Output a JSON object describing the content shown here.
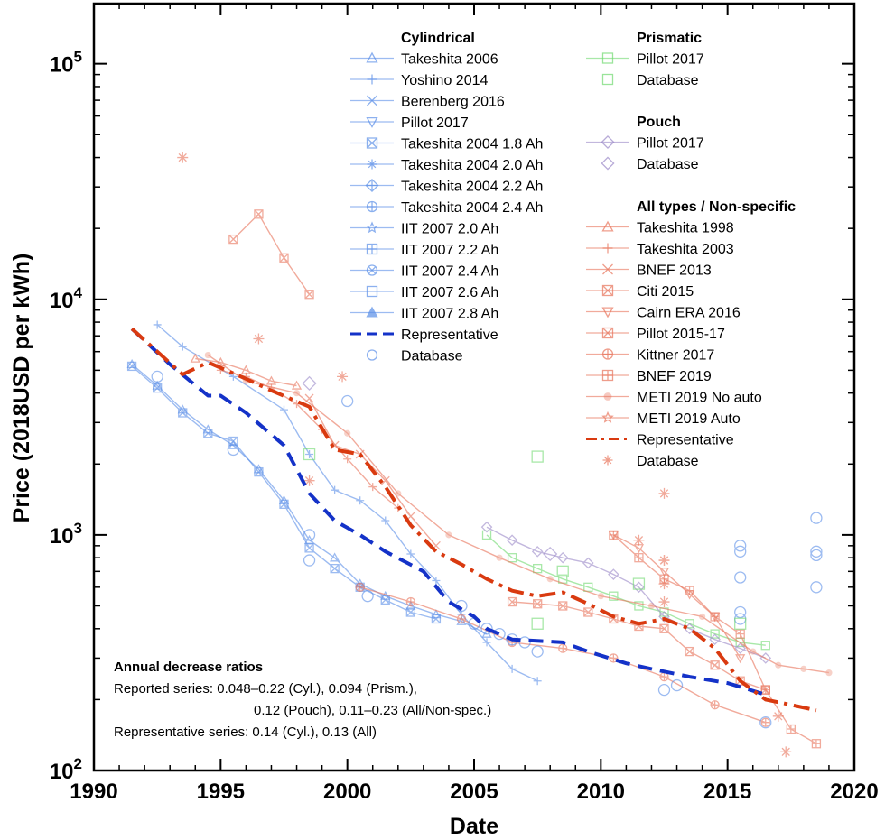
{
  "chart_data": {
    "type": "line",
    "xlabel": "Date",
    "ylabel": "Price (2018USD per kWh)",
    "xlim": [
      1990,
      2020
    ],
    "ylim": [
      100,
      180000
    ],
    "yscale": "log",
    "x_ticks": [
      "1990",
      "1995",
      "2000",
      "2005",
      "2010",
      "2015",
      "2020"
    ],
    "y_ticks": [
      {
        "value": 100,
        "base": "10",
        "exp": "2"
      },
      {
        "value": 1000,
        "base": "10",
        "exp": "3"
      },
      {
        "value": 10000,
        "base": "10",
        "exp": "4"
      },
      {
        "value": 100000,
        "base": "10",
        "exp": "5"
      }
    ],
    "grid": false,
    "legend_position": "top-right",
    "colors": {
      "cylindrical": "#5b8fe8",
      "cyl_light": "#8fb4f0",
      "prismatic": "#6fd96f",
      "pouch": "#9a88c8",
      "all": "#e8735a",
      "all_light": "#f0a090",
      "rep_cyl": "#1432c8",
      "rep_all": "#d93a10"
    },
    "legend": {
      "cylindrical": {
        "heading": "Cylindrical",
        "items": [
          {
            "label": "Takeshita 2006",
            "marker": "triangle"
          },
          {
            "label": "Yoshino 2014",
            "marker": "plus"
          },
          {
            "label": "Berenberg 2016",
            "marker": "cross"
          },
          {
            "label": "Pillot 2017",
            "marker": "triangle-down"
          },
          {
            "label": "Takeshita 2004 1.8 Ah",
            "marker": "square-x"
          },
          {
            "label": "Takeshita 2004 2.0 Ah",
            "marker": "asterisk"
          },
          {
            "label": "Takeshita 2004 2.2 Ah",
            "marker": "diamond-plus"
          },
          {
            "label": "Takeshita 2004 2.4 Ah",
            "marker": "circle-plus"
          },
          {
            "label": "IIT 2007 2.0 Ah",
            "marker": "star"
          },
          {
            "label": "IIT 2007 2.2 Ah",
            "marker": "square-plus"
          },
          {
            "label": "IIT 2007 2.4 Ah",
            "marker": "circle-x"
          },
          {
            "label": "IIT 2007 2.6 Ah",
            "marker": "square"
          },
          {
            "label": "IIT 2007 2.8 Ah",
            "marker": "triangle-filled"
          },
          {
            "label": "Representative",
            "marker": "dash"
          },
          {
            "label": "Database",
            "marker": "circle"
          }
        ]
      },
      "prismatic": {
        "heading": "Prismatic",
        "items": [
          {
            "label": "Pillot 2017",
            "marker": "square"
          },
          {
            "label": "Database",
            "marker": "square"
          }
        ]
      },
      "pouch": {
        "heading": "Pouch",
        "items": [
          {
            "label": "Pillot 2017",
            "marker": "diamond"
          },
          {
            "label": "Database",
            "marker": "diamond"
          }
        ]
      },
      "all": {
        "heading": "All types / Non-specific",
        "items": [
          {
            "label": "Takeshita 1998",
            "marker": "triangle"
          },
          {
            "label": "Takeshita 2003",
            "marker": "plus"
          },
          {
            "label": "BNEF 2013",
            "marker": "cross"
          },
          {
            "label": "Citi 2015",
            "marker": "square-x"
          },
          {
            "label": "Cairn ERA 2016",
            "marker": "triangle-down"
          },
          {
            "label": "Pillot 2015-17",
            "marker": "square-x"
          },
          {
            "label": "Kittner 2017",
            "marker": "circle-plus"
          },
          {
            "label": "BNEF 2019",
            "marker": "square-plus"
          },
          {
            "label": "METI 2019 No auto",
            "marker": "dot"
          },
          {
            "label": "METI 2019 Auto",
            "marker": "star"
          },
          {
            "label": "Representative",
            "marker": "dashdot"
          },
          {
            "label": "Database",
            "marker": "asterisk"
          }
        ]
      }
    },
    "annotation": {
      "heading": "Annual decrease ratios",
      "line1": "Reported series: 0.048–0.22 (Cyl.), 0.094 (Prism.),",
      "line2": "0.12 (Pouch), 0.11–0.23 (All/Non-spec.)",
      "line3": "Representative series: 0.14 (Cyl.), 0.13 (All)"
    },
    "series": [
      {
        "name": "Representative",
        "group": "Cylindrical",
        "style": "dashed",
        "x": [
          1991.5,
          1993.0,
          1994.5,
          1995.0,
          1996.0,
          1997.5,
          1998.5,
          1999.5,
          2000.5,
          2001.5,
          2003.0,
          2004.0,
          2005.0,
          2005.5,
          2006.5,
          2008.5,
          2009.5,
          2011.0,
          2012.0,
          2013.5,
          2015.0,
          2016.5
        ],
        "y": [
          7500,
          5300,
          3900,
          3900,
          3300,
          2400,
          1500,
          1150,
          1000,
          850,
          700,
          520,
          450,
          400,
          360,
          350,
          320,
          285,
          270,
          250,
          235,
          210
        ]
      },
      {
        "name": "Representative",
        "group": "All types / Non-specific",
        "style": "dashdot",
        "x": [
          1991.5,
          1993.5,
          1994.5,
          1996.0,
          1997.0,
          1998.5,
          1999.5,
          2000.5,
          2001.5,
          2002.5,
          2003.5,
          2004.5,
          2005.5,
          2006.5,
          2007.5,
          2008.5,
          2009.5,
          2010.5,
          2011.5,
          2012.5,
          2013.5,
          2014.5,
          2015.5,
          2016.5,
          2017.5,
          2018.5
        ],
        "y": [
          7500,
          4800,
          5400,
          4600,
          4100,
          3500,
          2300,
          2200,
          1600,
          1100,
          850,
          750,
          650,
          580,
          550,
          570,
          510,
          450,
          420,
          440,
          400,
          330,
          240,
          200,
          190,
          180
        ]
      },
      {
        "name": "Takeshita 2006",
        "group": "Cylindrical",
        "x": [
          1991.5,
          1992.5,
          1993.5,
          1994.5,
          1995.5,
          1996.5,
          1997.5,
          1998.5,
          1999.5,
          2000.5,
          2001.5,
          2002.5,
          2003.5,
          2004.5,
          2005.5
        ],
        "y": [
          5300,
          4300,
          3400,
          2800,
          2400,
          1900,
          1400,
          950,
          800,
          620,
          550,
          500,
          460,
          430,
          380
        ]
      },
      {
        "name": "Yoshino 2014",
        "group": "Cylindrical",
        "x": [
          1992.5,
          1993.5,
          1995.5,
          1997.5,
          1998.5,
          1999.5,
          2000.5,
          2001.5,
          2002.5,
          2003.5,
          2004.5,
          2005.5,
          2006.5,
          2007.5
        ],
        "y": [
          7800,
          6300,
          4700,
          3400,
          2200,
          1550,
          1400,
          1150,
          830,
          640,
          460,
          350,
          270,
          240
        ]
      },
      {
        "name": "Takeshita 2004 1.8 Ah",
        "group": "Cylindrical",
        "x": [
          1991.5,
          1992.5,
          1993.5,
          1994.5,
          1995.5,
          1996.5,
          1997.5,
          1998.5,
          1999.5,
          2000.5,
          2001.5,
          2002.5,
          2003.5
        ],
        "y": [
          5200,
          4200,
          3300,
          2700,
          2500,
          1850,
          1350,
          880,
          720,
          600,
          530,
          470,
          440
        ]
      },
      {
        "name": "Pillot 2017",
        "group": "Prismatic",
        "x": [
          2005.5,
          2006.5,
          2007.5,
          2008.5,
          2009.5,
          2010.5,
          2011.5,
          2012.5,
          2013.5,
          2014.5,
          2015.5,
          2016.5
        ],
        "y": [
          1000,
          800,
          720,
          650,
          600,
          550,
          500,
          470,
          420,
          380,
          350,
          340
        ]
      },
      {
        "name": "Pillot 2017",
        "group": "Pouch",
        "x": [
          2005.5,
          2006.5,
          2007.5,
          2008.5,
          2009.5,
          2010.5,
          2011.5,
          2012.5,
          2013.5,
          2014.5,
          2015.5,
          2016.5
        ],
        "y": [
          1080,
          950,
          850,
          800,
          760,
          680,
          600,
          450,
          400,
          360,
          330,
          300
        ]
      },
      {
        "name": "Takeshita 1998",
        "group": "All types / Non-specific",
        "x": [
          1994.0,
          1995.0,
          1996.0,
          1997.0,
          1998.0
        ],
        "y": [
          5600,
          5400,
          5000,
          4500,
          4300
        ]
      },
      {
        "name": "Takeshita 2003",
        "group": "All types / Non-specific",
        "x": [
          1995.0,
          1996.0,
          1997.0,
          1998.0,
          1999.0,
          2000.0,
          2001.0,
          2002.0
        ],
        "y": [
          5000,
          4700,
          4200,
          3600,
          2800,
          2100,
          1600,
          1300
        ]
      },
      {
        "name": "Citi 2015",
        "group": "All types / Non-specific",
        "x": [
          1995.5,
          1996.5,
          1997.5,
          1998.5
        ],
        "y": [
          18000,
          23000,
          15000,
          10500
        ]
      },
      {
        "name": "BNEF 2013",
        "group": "All types / Non-specific",
        "x": [
          1998.5,
          1999.5,
          2000.5,
          2001.5,
          2002.5,
          2003.5
        ],
        "y": [
          3800,
          2400,
          2200,
          1700,
          1200,
          900
        ]
      },
      {
        "name": "Pillot 2015-17",
        "group": "All types / Non-specific",
        "x": [
          2006.5,
          2007.5,
          2008.5,
          2009.5,
          2010.5,
          2011.5,
          2012.5,
          2013.5,
          2014.5,
          2015.5,
          2016.5
        ],
        "y": [
          520,
          510,
          500,
          470,
          440,
          410,
          400,
          320,
          280,
          240,
          220
        ]
      },
      {
        "name": "Cairn ERA 2016",
        "group": "All types / Non-specific",
        "x": [
          2010.5,
          2011.5,
          2012.5,
          2013.5,
          2014.5,
          2015.5
        ],
        "y": [
          1000,
          880,
          700,
          560,
          450,
          300
        ]
      },
      {
        "name": "Kittner 2017",
        "group": "All types / Non-specific",
        "x": [
          2000.5,
          2002.5,
          2004.5,
          2006.5,
          2008.5,
          2010.5,
          2012.5,
          2014.5,
          2016.5
        ],
        "y": [
          600,
          520,
          440,
          350,
          330,
          300,
          250,
          190,
          160
        ]
      },
      {
        "name": "BNEF 2019",
        "group": "All types / Non-specific",
        "x": [
          2010.5,
          2011.5,
          2012.5,
          2013.5,
          2014.5,
          2015.5,
          2016.5,
          2017.5,
          2018.5
        ],
        "y": [
          1000,
          800,
          650,
          580,
          450,
          380,
          220,
          150,
          130
        ]
      },
      {
        "name": "METI 2019 No auto",
        "group": "All types / Non-specific",
        "x": [
          1994.5,
          1996.0,
          1998.0,
          2000.0,
          2002.0,
          2004.0,
          2006.0,
          2008.0,
          2010.0,
          2012.0,
          2014.0,
          2016.0,
          2017.0,
          2018.0,
          2019.0
        ],
        "y": [
          5800,
          4500,
          4000,
          2700,
          1500,
          1000,
          800,
          650,
          550,
          500,
          450,
          320,
          280,
          270,
          260
        ]
      }
    ],
    "scatter": [
      {
        "name": "Database",
        "group": "Cylindrical",
        "x": [
          1992.5,
          1995.5,
          1998.5,
          1998.5,
          2000.0,
          2000.8,
          2004.5,
          2005.0,
          2005.5,
          2006.0,
          2006.5,
          2007.0,
          2007.5,
          2012.5,
          2013.0,
          2015.5,
          2015.5,
          2015.5,
          2015.5,
          2015.5,
          2016.5,
          2018.5,
          2018.5,
          2018.5,
          2018.5
        ],
        "y": [
          4700,
          2300,
          1000,
          780,
          3700,
          550,
          500,
          420,
          400,
          380,
          360,
          350,
          320,
          220,
          230,
          900,
          850,
          660,
          470,
          440,
          160,
          1180,
          850,
          820,
          600
        ]
      },
      {
        "name": "Database",
        "group": "Prismatic",
        "x": [
          1998.5,
          2007.5,
          2007.5,
          2008.5,
          2011.5,
          2015.5
        ],
        "y": [
          2200,
          2150,
          420,
          700,
          620,
          420
        ]
      },
      {
        "name": "Database",
        "group": "Pouch",
        "x": [
          1998.5,
          2008.0
        ],
        "y": [
          4400,
          830
        ]
      },
      {
        "name": "Database",
        "group": "All types / Non-specific",
        "x": [
          1993.5,
          1996.5,
          1998.5,
          1999.8,
          2011.5,
          2012.5,
          2012.5,
          2012.5,
          2012.5,
          2012.5,
          2017.0,
          2017.3
        ],
        "y": [
          40000,
          6800,
          1700,
          4700,
          950,
          1500,
          780,
          780,
          620,
          520,
          170,
          120
        ]
      }
    ]
  }
}
